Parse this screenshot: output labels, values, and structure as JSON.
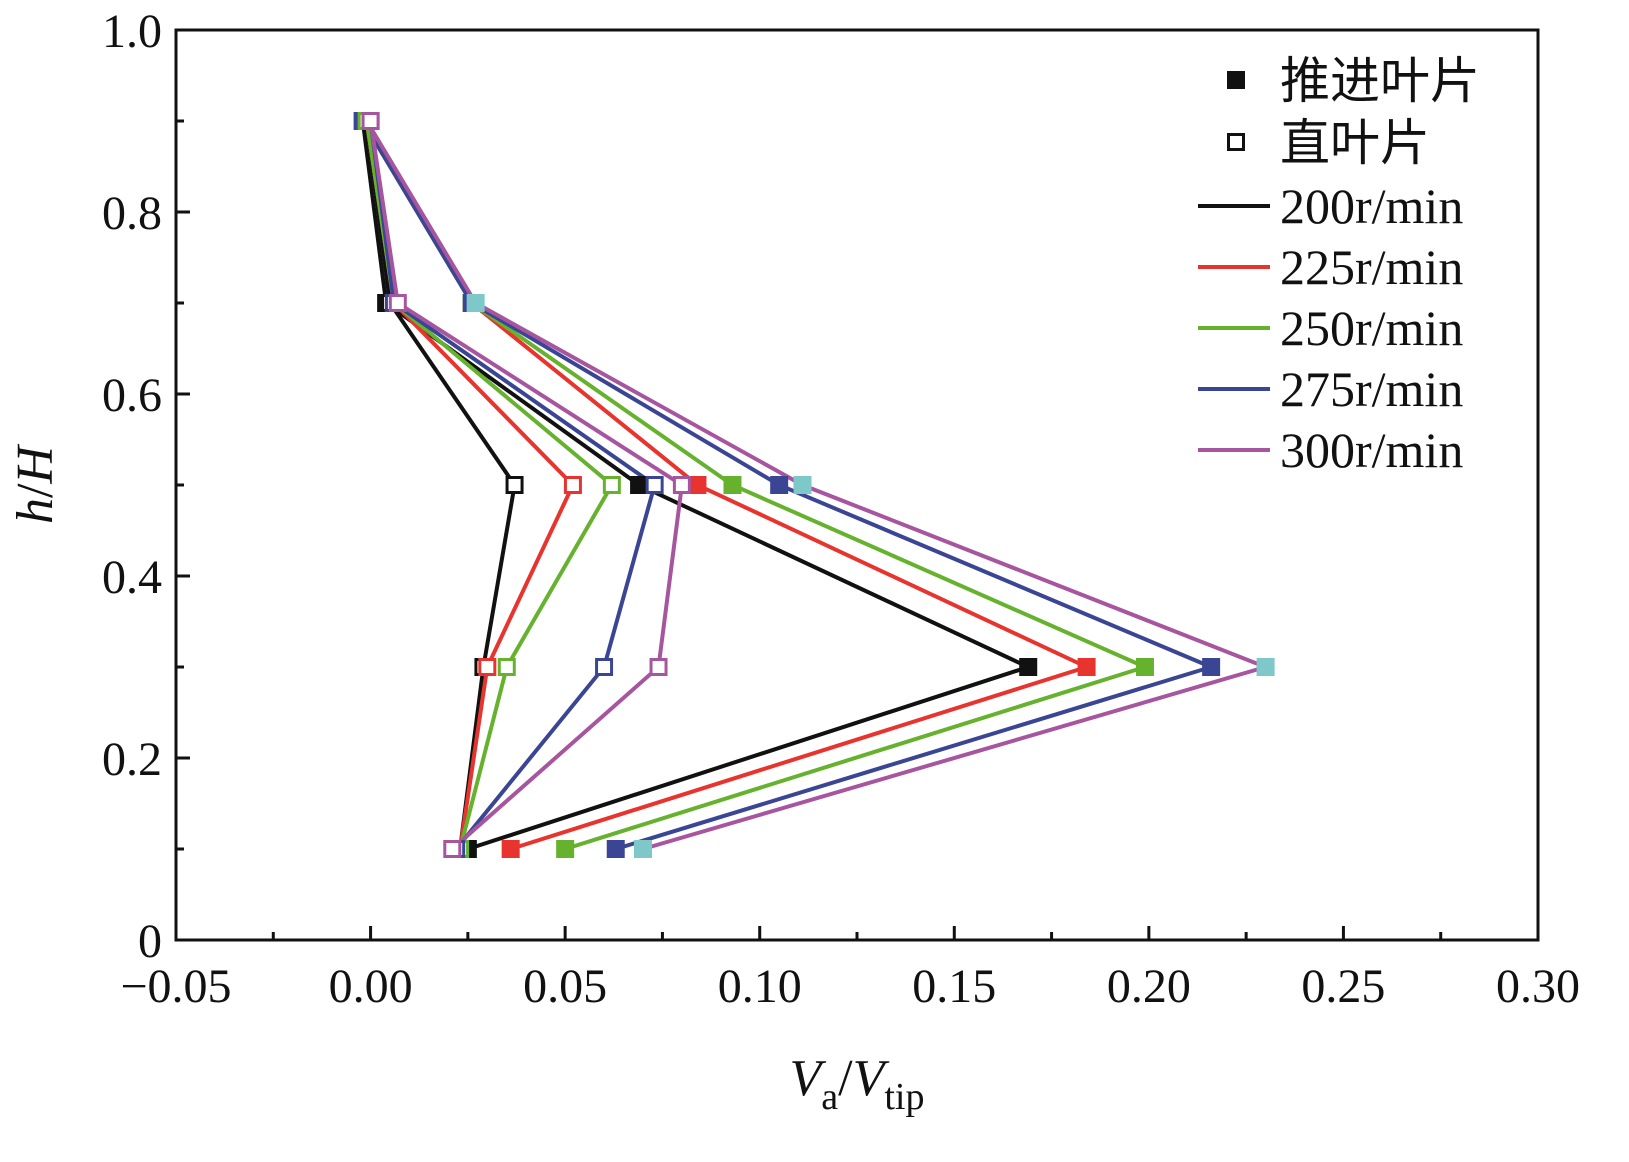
{
  "chart_data": {
    "type": "line",
    "xlabel": {
      "main": "V",
      "sub1": "a",
      "sep": "/",
      "main2": "V",
      "sub2": "tip"
    },
    "ylabel": {
      "main": "h",
      "sep": "/",
      "main2": "H"
    },
    "xlim": [
      -0.05,
      0.3
    ],
    "ylim": [
      0,
      1.0
    ],
    "xticks": [
      "−0.05",
      "0.00",
      "0.05",
      "0.10",
      "0.15",
      "0.20",
      "0.25",
      "0.30"
    ],
    "yticks": [
      "0",
      "0.2",
      "0.4",
      "0.6",
      "0.8",
      "1.0"
    ],
    "grid": false,
    "legend_placement": "top-right",
    "legend": {
      "markers": [
        {
          "label": "推进叶片",
          "style": "filled"
        },
        {
          "label": "直叶片",
          "style": "open"
        }
      ],
      "lines": [
        {
          "label": "200r/min",
          "color": "#111111"
        },
        {
          "label": "225r/min",
          "color": "#e8342e"
        },
        {
          "label": "250r/min",
          "color": "#66b22e"
        },
        {
          "label": "275r/min",
          "color": "#3a4694"
        },
        {
          "label": "300r/min",
          "color": "#a7559f"
        }
      ]
    },
    "h": [
      0.1,
      0.3,
      0.5,
      0.7,
      0.9
    ],
    "series": [
      {
        "speed": "200r/min",
        "blade": "推进叶片",
        "color": "#111111",
        "marker_color": "#111111",
        "x": [
          0.025,
          0.169,
          0.069,
          0.004,
          -0.002
        ]
      },
      {
        "speed": "225r/min",
        "blade": "推进叶片",
        "color": "#e8342e",
        "marker_color": "#e8342e",
        "x": [
          0.036,
          0.184,
          0.084,
          0.026,
          -0.002
        ]
      },
      {
        "speed": "250r/min",
        "blade": "推进叶片",
        "color": "#66b22e",
        "marker_color": "#66b22e",
        "x": [
          0.05,
          0.199,
          0.093,
          0.026,
          -0.002
        ]
      },
      {
        "speed": "275r/min",
        "blade": "推进叶片",
        "color": "#3a4694",
        "marker_color": "#3a4694",
        "x": [
          0.063,
          0.216,
          0.105,
          0.026,
          -0.002
        ]
      },
      {
        "speed": "300r/min",
        "blade": "推进叶片",
        "color": "#a7559f",
        "marker_color": "#7ec8c9",
        "x": [
          0.07,
          0.23,
          0.111,
          0.027,
          -0.001
        ]
      },
      {
        "speed": "200r/min",
        "blade": "直叶片",
        "color": "#111111",
        "marker_color": "#111111",
        "x": [
          0.023,
          0.029,
          0.037,
          0.005,
          -0.001
        ]
      },
      {
        "speed": "225r/min",
        "blade": "直叶片",
        "color": "#e8342e",
        "marker_color": "#e8342e",
        "x": [
          0.023,
          0.03,
          0.052,
          0.006,
          -0.001
        ]
      },
      {
        "speed": "250r/min",
        "blade": "直叶片",
        "color": "#66b22e",
        "marker_color": "#66b22e",
        "x": [
          0.023,
          0.035,
          0.062,
          0.006,
          -0.001
        ]
      },
      {
        "speed": "275r/min",
        "blade": "直叶片",
        "color": "#3a4694",
        "marker_color": "#3a4694",
        "x": [
          0.022,
          0.06,
          0.073,
          0.006,
          0.0
        ]
      },
      {
        "speed": "300r/min",
        "blade": "直叶片",
        "color": "#a7559f",
        "marker_color": "#a7559f",
        "x": [
          0.021,
          0.074,
          0.08,
          0.007,
          0.0
        ]
      }
    ]
  }
}
